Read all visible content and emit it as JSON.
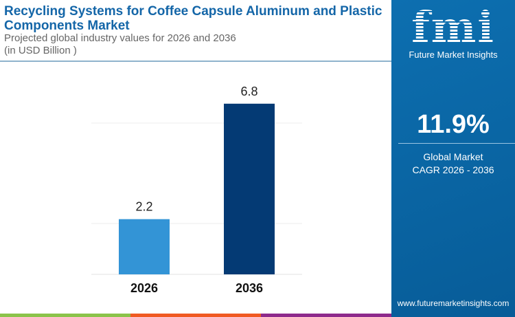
{
  "header": {
    "title": "Recycling Systems for Coffee Capsule Aluminum and Plastic Components Market",
    "subtitle_line1": "Projected global industry values for 2026 and 2036",
    "subtitle_line2": "(in USD Billion )"
  },
  "brand": {
    "logo_text": "fmi",
    "name": "Future Market Insights",
    "url": "www.futuremarketinsights.com"
  },
  "cagr": {
    "value": "11.9%",
    "label_line1": "Global Market",
    "label_line2": "CAGR 2026 - 2036"
  },
  "colors": {
    "bar_2026": "#3394d6",
    "bar_2036": "#043a74",
    "panel": "#0a67a8",
    "strip": [
      "#8bc34a",
      "#f05a22",
      "#8e2a8c"
    ]
  },
  "chart_data": {
    "type": "bar",
    "categories": [
      "2026",
      "2036"
    ],
    "values": [
      2.2,
      6.8
    ],
    "data_labels": [
      "2.2",
      "6.8"
    ],
    "ylim": [
      0,
      8
    ],
    "grid": true
  }
}
